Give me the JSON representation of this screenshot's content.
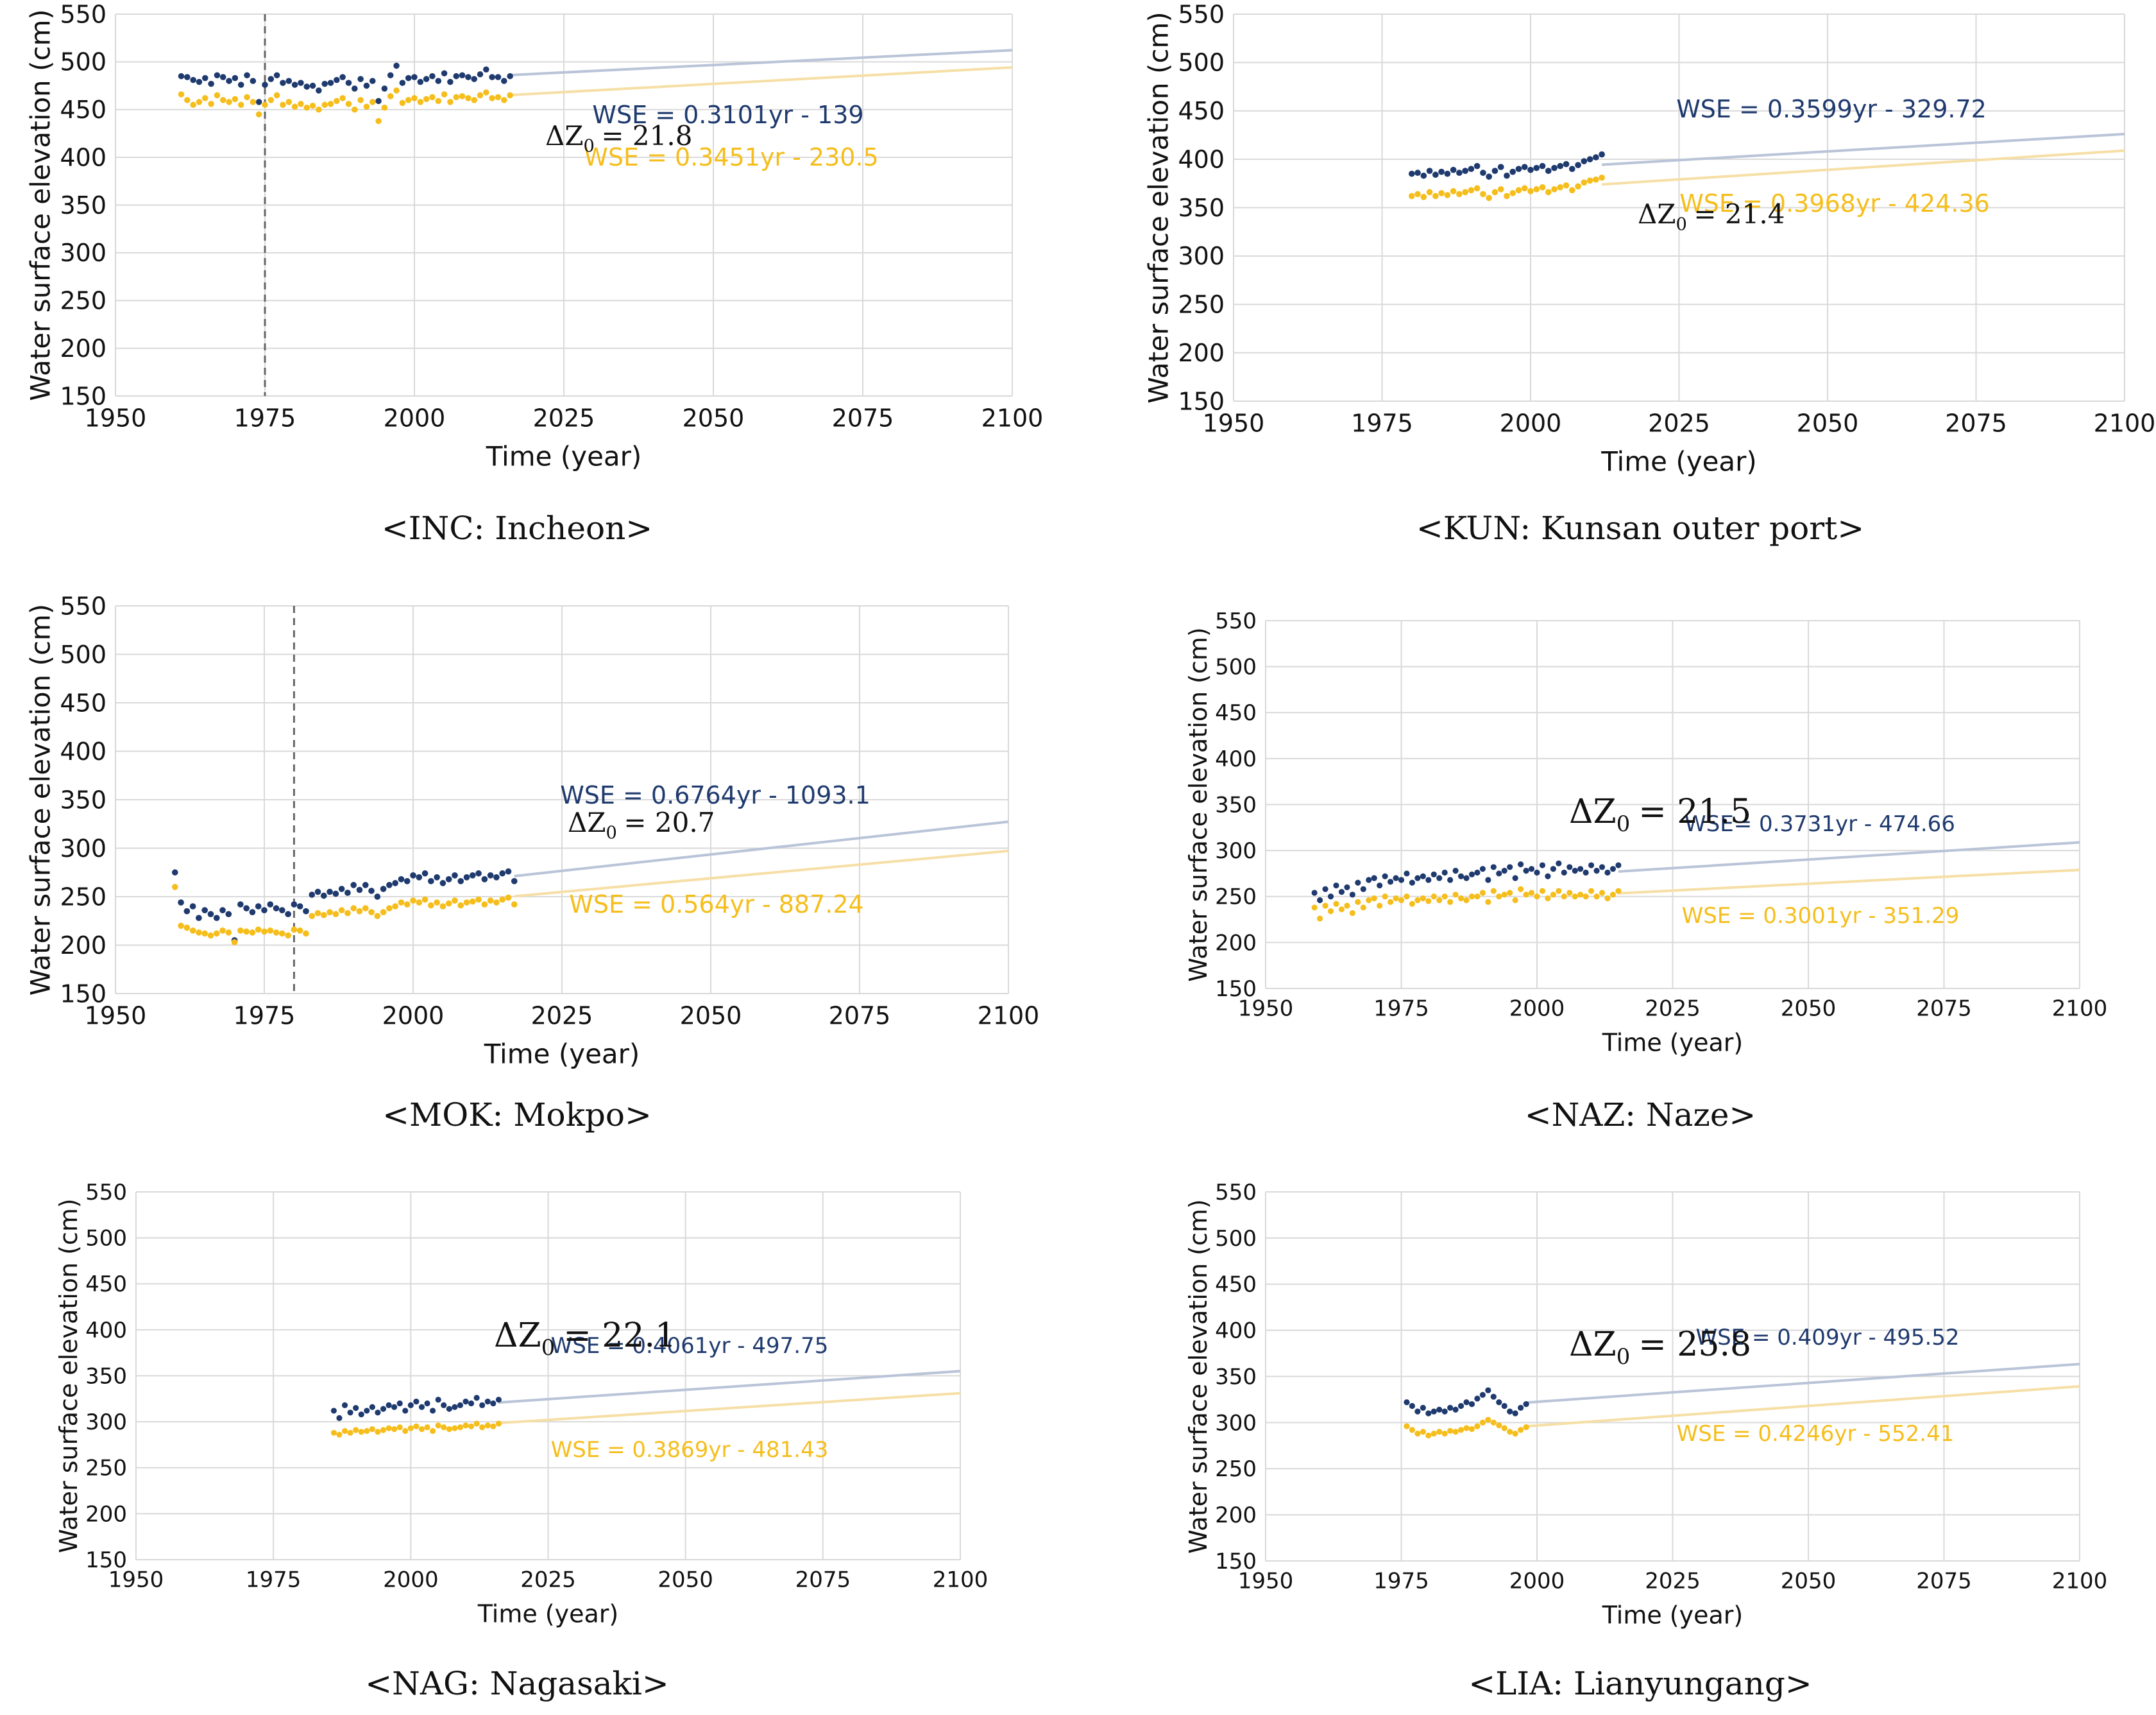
{
  "chart_data": [
    {
      "id": "INC",
      "type": "scatter",
      "caption": "<INC:  Incheon>",
      "xlabel": "Time (year)",
      "ylabel": "Water surface elevation (cm)",
      "xlim": [
        1950,
        2100
      ],
      "ylim": [
        150,
        550
      ],
      "xticks": [
        "1950",
        "1975",
        "2000",
        "2025",
        "2050",
        "2075",
        "2100"
      ],
      "yticks": [
        "150",
        "200",
        "250",
        "300",
        "350",
        "400",
        "450",
        "500",
        "550"
      ],
      "grid": true,
      "vline_year": 1975,
      "data_start": 1961,
      "data_end": 2016,
      "delta_label": "ΔZ",
      "delta_value": "= 21.8",
      "series": [
        {
          "name": "upper",
          "color": "#1f3a6e",
          "fit_label": "WSE = 0.3101yr - 139",
          "slope": 0.3101,
          "intercept": -139,
          "values": [
            485,
            484,
            481,
            479,
            483,
            477,
            486,
            484,
            480,
            483,
            476,
            486,
            480,
            458,
            476,
            482,
            486,
            478,
            480,
            476,
            478,
            474,
            475,
            470,
            477,
            478,
            481,
            484,
            478,
            472,
            482,
            475,
            480,
            459,
            472,
            486,
            496,
            478,
            483,
            484,
            479,
            482,
            485,
            480,
            488,
            479,
            485,
            486,
            484,
            482,
            487,
            492,
            484,
            484,
            480,
            485
          ]
        },
        {
          "name": "lower",
          "color": "#f5be1c",
          "fit_label": "WSE = 0.3451yr - 230.5",
          "slope": 0.3451,
          "intercept": -230.5,
          "values": [
            466,
            460,
            455,
            458,
            462,
            456,
            465,
            460,
            458,
            461,
            455,
            463,
            458,
            445,
            455,
            460,
            465,
            455,
            458,
            453,
            456,
            452,
            454,
            450,
            455,
            456,
            459,
            462,
            456,
            450,
            460,
            453,
            458,
            438,
            452,
            464,
            470,
            457,
            460,
            462,
            458,
            461,
            463,
            459,
            466,
            458,
            463,
            464,
            462,
            460,
            465,
            468,
            462,
            463,
            460,
            465
          ]
        }
      ]
    },
    {
      "id": "KUN",
      "type": "scatter",
      "caption": "<KUN:  Kunsan  outer  port>",
      "xlabel": "Time (year)",
      "ylabel": "Water surface elevation (cm)",
      "xlim": [
        1950,
        2100
      ],
      "ylim": [
        150,
        550
      ],
      "xticks": [
        "1950",
        "1975",
        "2000",
        "2025",
        "2050",
        "2075",
        "2100"
      ],
      "yticks": [
        "150",
        "200",
        "250",
        "300",
        "350",
        "400",
        "450",
        "500",
        "550"
      ],
      "grid": true,
      "vline_year": null,
      "data_start": 1980,
      "data_end": 2012,
      "delta_label": "ΔZ",
      "delta_value": "= 21.4",
      "series": [
        {
          "name": "upper",
          "color": "#1f3a6e",
          "fit_label": "WSE = 0.3599yr - 329.72",
          "slope": 0.3599,
          "intercept": -329.72,
          "values": [
            385,
            386,
            383,
            388,
            384,
            387,
            385,
            389,
            386,
            388,
            390,
            393,
            386,
            382,
            388,
            392,
            383,
            387,
            390,
            392,
            389,
            391,
            393,
            388,
            391,
            393,
            395,
            390,
            394,
            398,
            400,
            402,
            405
          ]
        },
        {
          "name": "lower",
          "color": "#f5be1c",
          "fit_label": "WSE = 0.3968yr - 424.36",
          "slope": 0.3968,
          "intercept": -424.36,
          "values": [
            362,
            364,
            361,
            366,
            362,
            365,
            363,
            367,
            364,
            366,
            368,
            370,
            364,
            360,
            366,
            369,
            362,
            365,
            368,
            370,
            367,
            369,
            371,
            366,
            369,
            371,
            373,
            368,
            372,
            376,
            378,
            379,
            381
          ]
        }
      ]
    },
    {
      "id": "MOK",
      "type": "scatter",
      "caption": "<MOK:  Mokpo>",
      "xlabel": "Time (year)",
      "ylabel": "Water surface elevation (cm)",
      "xlim": [
        1950,
        2100
      ],
      "ylim": [
        150,
        550
      ],
      "xticks": [
        "1950",
        "1975",
        "2000",
        "2025",
        "2050",
        "2075",
        "2100"
      ],
      "yticks": [
        "150",
        "200",
        "250",
        "300",
        "350",
        "400",
        "450",
        "500",
        "550"
      ],
      "grid": true,
      "vline_year": 1980,
      "data_start": 1960,
      "data_end": 2017,
      "delta_label": "ΔZ",
      "delta_value": "= 20.7",
      "series": [
        {
          "name": "upper",
          "color": "#1f3a6e",
          "fit_label": "WSE = 0.6764yr - 1093.1",
          "slope": 0.6764,
          "intercept": -1093.1,
          "values": [
            275,
            244,
            235,
            240,
            228,
            236,
            232,
            228,
            236,
            232,
            205,
            242,
            238,
            234,
            240,
            236,
            242,
            238,
            236,
            232,
            242,
            240,
            235,
            252,
            255,
            251,
            255,
            253,
            258,
            254,
            262,
            257,
            262,
            256,
            250,
            258,
            262,
            264,
            268,
            266,
            272,
            270,
            274,
            266,
            270,
            264,
            268,
            272,
            266,
            270,
            272,
            274,
            268,
            272,
            270,
            274,
            276,
            266
          ]
        },
        {
          "name": "lower",
          "color": "#f5be1c",
          "fit_label": "WSE = 0.564yr - 887.24",
          "slope": 0.564,
          "intercept": -887.24,
          "values": [
            260,
            220,
            218,
            215,
            213,
            212,
            210,
            212,
            215,
            213,
            203,
            215,
            214,
            213,
            216,
            214,
            215,
            213,
            212,
            210,
            216,
            215,
            212,
            230,
            233,
            231,
            234,
            232,
            236,
            233,
            238,
            235,
            238,
            234,
            230,
            234,
            238,
            240,
            244,
            242,
            246,
            244,
            247,
            241,
            244,
            240,
            243,
            246,
            241,
            244,
            245,
            247,
            242,
            246,
            244,
            247,
            249,
            242
          ]
        }
      ]
    },
    {
      "id": "NAZ",
      "type": "scatter",
      "caption": "<NAZ:  Naze>",
      "xlabel": "Time (year)",
      "ylabel": "Water surface elevation (cm)",
      "xlim": [
        1950,
        2100
      ],
      "ylim": [
        150,
        550
      ],
      "xticks": [
        "1950",
        "1975",
        "2000",
        "2025",
        "2050",
        "2075",
        "2100"
      ],
      "yticks": [
        "150",
        "200",
        "250",
        "300",
        "350",
        "400",
        "450",
        "500",
        "550"
      ],
      "grid": true,
      "vline_year": null,
      "data_start": 1959,
      "data_end": 2015,
      "delta_label": "ΔZ",
      "delta_value": "= 21.5",
      "series": [
        {
          "name": "upper",
          "color": "#1f3a6e",
          "fit_label": "WSE= 0.3731yr - 474.66",
          "slope": 0.3731,
          "intercept": -474.66,
          "values": [
            254,
            246,
            258,
            250,
            262,
            255,
            260,
            252,
            265,
            258,
            268,
            270,
            262,
            272,
            266,
            270,
            268,
            275,
            265,
            270,
            272,
            268,
            274,
            270,
            276,
            268,
            278,
            272,
            270,
            274,
            276,
            280,
            268,
            282,
            275,
            278,
            282,
            270,
            285,
            278,
            280,
            276,
            284,
            272,
            280,
            286,
            276,
            282,
            278,
            280,
            276,
            284,
            278,
            282,
            276,
            280,
            284
          ]
        },
        {
          "name": "lower",
          "color": "#f5be1c",
          "fit_label": "WSE = 0.3001yr - 351.29",
          "slope": 0.3001,
          "intercept": -351.29,
          "values": [
            238,
            226,
            240,
            234,
            242,
            236,
            240,
            232,
            244,
            238,
            246,
            248,
            240,
            250,
            244,
            248,
            246,
            250,
            242,
            246,
            248,
            245,
            250,
            246,
            250,
            244,
            252,
            248,
            246,
            250,
            250,
            254,
            244,
            256,
            250,
            252,
            254,
            246,
            258,
            252,
            254,
            250,
            256,
            248,
            252,
            256,
            250,
            254,
            250,
            252,
            250,
            256,
            250,
            254,
            248,
            252,
            256
          ]
        }
      ]
    },
    {
      "id": "NAG",
      "type": "scatter",
      "caption": "<NAG:  Nagasaki>",
      "xlabel": "Time (year)",
      "ylabel": "Water surface elevation (cm)",
      "xlim": [
        1950,
        2100
      ],
      "ylim": [
        150,
        550
      ],
      "xticks": [
        "1950",
        "1975",
        "2000",
        "2025",
        "2050",
        "2075",
        "2100"
      ],
      "yticks": [
        "150",
        "200",
        "250",
        "300",
        "350",
        "400",
        "450",
        "500",
        "550"
      ],
      "grid": true,
      "vline_year": null,
      "data_start": 1986,
      "data_end": 2016,
      "delta_label": "ΔZ",
      "delta_value": "= 22.1",
      "series": [
        {
          "name": "upper",
          "color": "#1f3a6e",
          "fit_label": "WSE = 0.4061yr - 497.75",
          "slope": 0.4061,
          "intercept": -497.75,
          "values": [
            312,
            304,
            318,
            310,
            315,
            308,
            312,
            316,
            310,
            314,
            318,
            316,
            320,
            312,
            318,
            322,
            316,
            320,
            312,
            324,
            318,
            314,
            316,
            318,
            322,
            320,
            326,
            318,
            322,
            320,
            324
          ]
        },
        {
          "name": "lower",
          "color": "#f5be1c",
          "fit_label": "WSE = 0.3869yr - 481.43",
          "slope": 0.3869,
          "intercept": -481.43,
          "values": [
            288,
            286,
            290,
            288,
            291,
            289,
            290,
            292,
            289,
            291,
            293,
            292,
            294,
            290,
            293,
            295,
            292,
            294,
            290,
            296,
            294,
            292,
            293,
            294,
            296,
            295,
            298,
            294,
            296,
            295,
            298
          ]
        }
      ]
    },
    {
      "id": "LIA",
      "type": "scatter",
      "caption": "<LIA:  Lianyungang>",
      "xlabel": "Time (year)",
      "ylabel": "Water surface elevation (cm)",
      "xlim": [
        1950,
        2100
      ],
      "ylim": [
        150,
        550
      ],
      "xticks": [
        "1950",
        "1975",
        "2000",
        "2025",
        "2050",
        "2075",
        "2100"
      ],
      "yticks": [
        "150",
        "200",
        "250",
        "300",
        "350",
        "400",
        "450",
        "500",
        "550"
      ],
      "grid": true,
      "vline_year": null,
      "data_start": 1976,
      "data_end": 1998,
      "delta_label": "ΔZ",
      "delta_value": "= 25.8",
      "series": [
        {
          "name": "upper",
          "color": "#1f3a6e",
          "fit_label": "WSE = 0.409yr - 495.52",
          "slope": 0.409,
          "intercept": -495.52,
          "values": [
            322,
            318,
            312,
            316,
            310,
            312,
            314,
            312,
            316,
            314,
            318,
            322,
            320,
            326,
            330,
            335,
            328,
            322,
            318,
            312,
            310,
            316,
            320
          ]
        },
        {
          "name": "lower",
          "color": "#f5be1c",
          "fit_label": "WSE = 0.4246yr - 552.41",
          "slope": 0.4246,
          "intercept": -552.41,
          "values": [
            296,
            292,
            288,
            290,
            286,
            288,
            290,
            288,
            291,
            290,
            292,
            294,
            293,
            296,
            300,
            303,
            300,
            297,
            294,
            290,
            288,
            292,
            295
          ]
        }
      ]
    }
  ]
}
